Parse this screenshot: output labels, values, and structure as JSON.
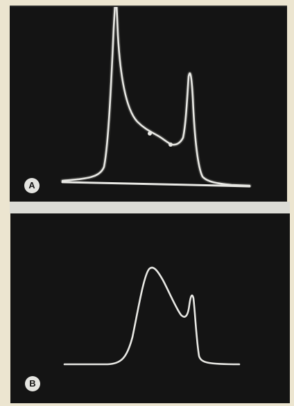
{
  "panels": [
    {
      "label": "A",
      "trace_color": "#e8e8e4",
      "background": "#141414"
    },
    {
      "label": "B",
      "trace_color": "#e8e8e4",
      "background": "#141414"
    }
  ],
  "page_background": "#ece5d0",
  "divider_color": "#dcdcd6"
}
